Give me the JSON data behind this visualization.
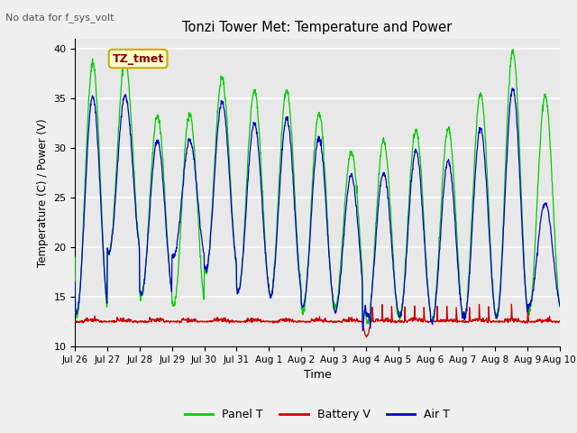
{
  "title": "Tonzi Tower Met: Temperature and Power",
  "subtitle": "No data for f_sys_volt",
  "ylabel": "Temperature (C) / Power (V)",
  "xlabel": "Time",
  "ylim": [
    10,
    41
  ],
  "yticks": [
    10,
    15,
    20,
    25,
    30,
    35,
    40
  ],
  "xtick_labels": [
    "Jul 26",
    "Jul 27",
    "Jul 28",
    "Jul 29",
    "Jul 30",
    "Jul 31",
    "Aug 1",
    "Aug 2",
    "Aug 3",
    "Aug 4",
    "Aug 5",
    "Aug 6",
    "Aug 7",
    "Aug 8",
    "Aug 9",
    "Aug 10"
  ],
  "legend_entries": [
    "Panel T",
    "Battery V",
    "Air T"
  ],
  "panel_t_color": "#00cc00",
  "battery_v_color": "#cc0000",
  "air_t_color": "#0000cc",
  "fig_bg_color": "#f0f0f0",
  "plot_bg_color": "#e8e8e8",
  "annotation_label": "TZ_tmet",
  "annotation_text_color": "#8b0000",
  "annotation_bg_color": "#ffffcc",
  "annotation_border_color": "#ccaa00",
  "grid_color": "#ffffff",
  "subtitle_color": "#555555"
}
